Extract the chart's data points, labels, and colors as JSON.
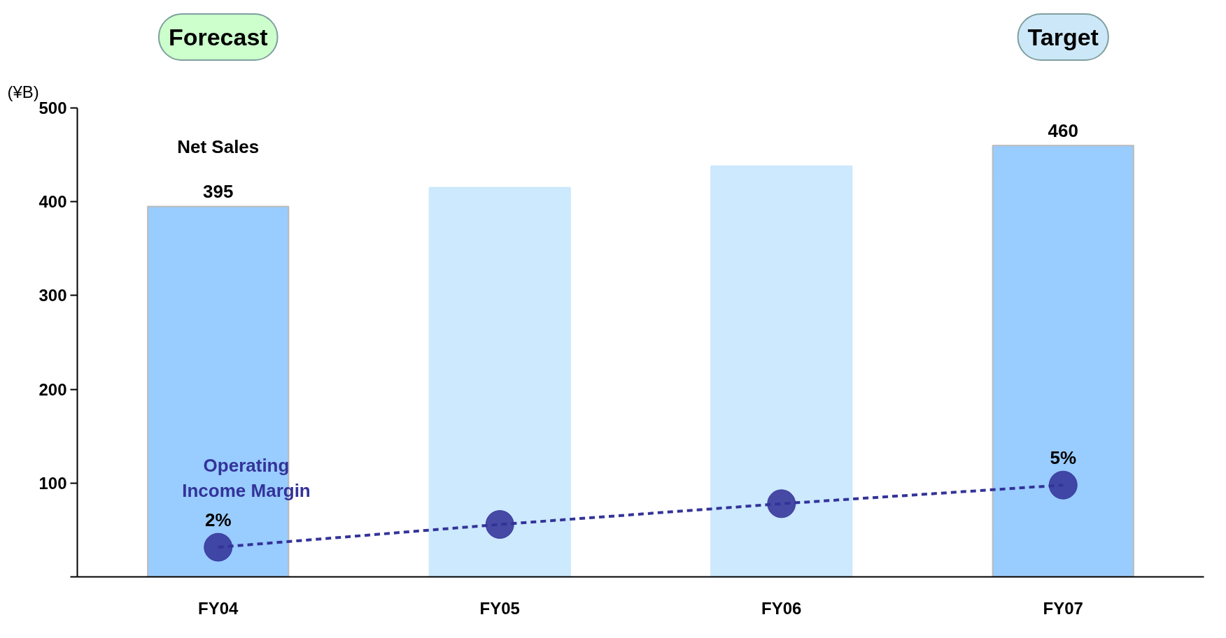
{
  "chart_data": {
    "type": "bar",
    "ylabel": "(¥B)",
    "categories": [
      "FY04",
      "FY05",
      "FY06",
      "FY07"
    ],
    "ylim": [
      0,
      500
    ],
    "yticks": [
      {
        "value": 0,
        "label": null
      },
      100,
      200,
      300,
      400,
      500
    ],
    "y2lim": [
      0.57,
      23.2
    ],
    "series": [
      {
        "name": "Net Sales",
        "colors": [
          "#99ccff",
          "#cce9fd",
          "#cce9fd",
          "#99ccff"
        ],
        "values": [
          395,
          415,
          438,
          460
        ],
        "value_labels": [
          "395",
          null,
          null,
          "460"
        ]
      },
      {
        "name": "Operating Income Margin",
        "type": "line",
        "axis": "y2",
        "color": "#333399",
        "values": [
          2,
          3.1,
          4.1,
          5
        ],
        "value_labels": [
          "2%",
          null,
          null,
          "5%"
        ],
        "marker": "circle",
        "line_style": "dashed"
      }
    ],
    "annotations": [
      "Forecast",
      "Target"
    ]
  }
}
